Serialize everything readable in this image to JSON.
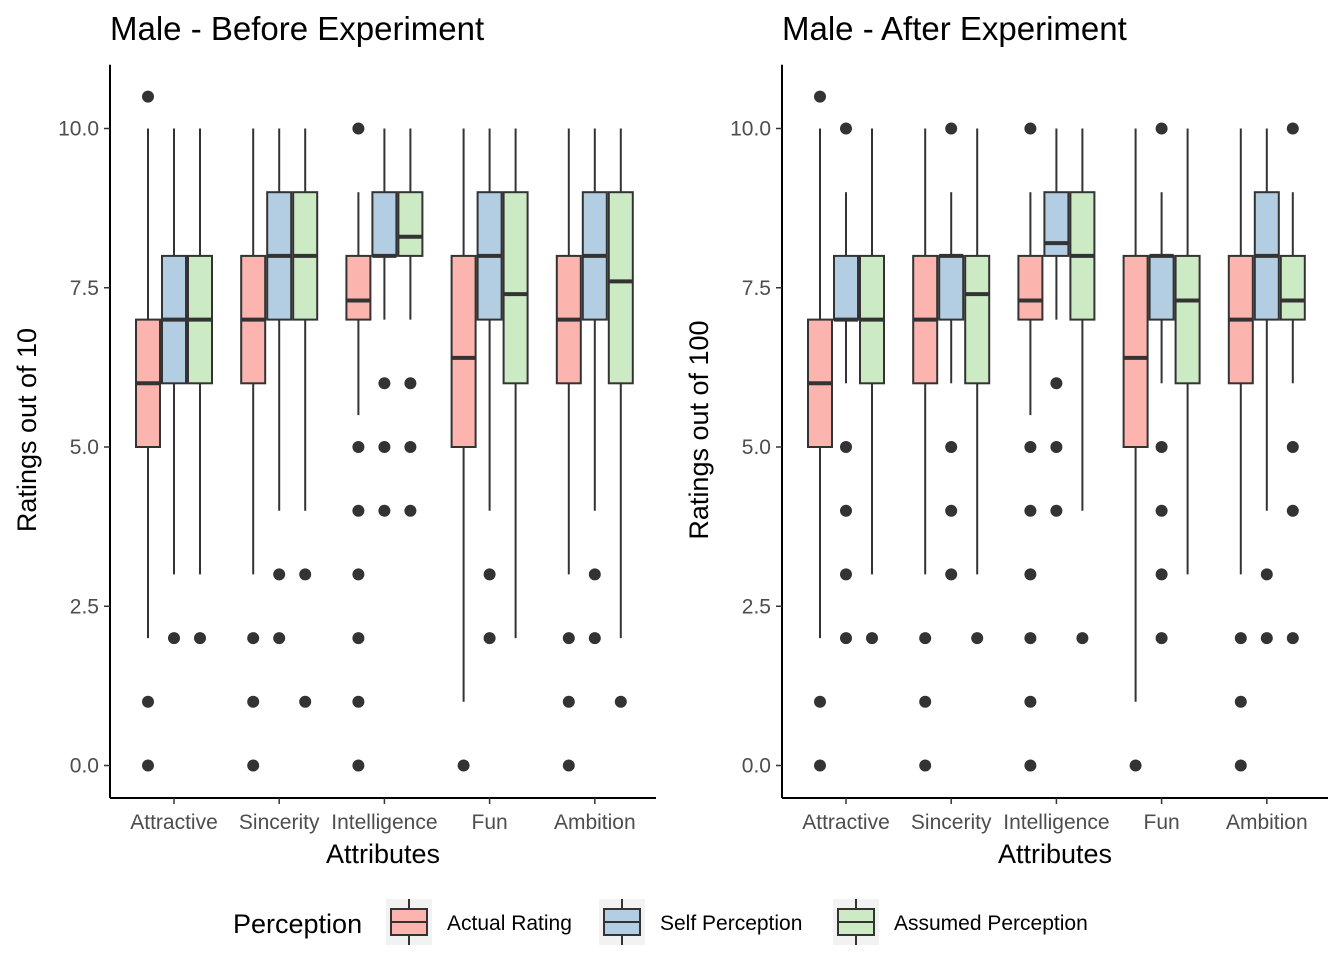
{
  "chart_data": [
    {
      "type": "box",
      "title": "Male - Before Experiment",
      "xlabel": "Attributes",
      "ylabel": "Ratings out of 10",
      "ylim": [
        -0.5,
        11
      ],
      "yticks": [
        "0.0",
        "2.5",
        "5.0",
        "7.5",
        "10.0"
      ],
      "categories": [
        "Attractive",
        "Sincerity",
        "Intelligence",
        "Fun",
        "Ambition"
      ],
      "series": [
        {
          "name": "Actual Rating",
          "color": "#fbb4ae",
          "boxes": [
            {
              "q1": 5,
              "median": 6,
              "q3": 7,
              "whisker_low": 2,
              "whisker_high": 10,
              "outliers": [
                10.5,
                1,
                0
              ]
            },
            {
              "q1": 6,
              "median": 7,
              "q3": 8,
              "whisker_low": 3,
              "whisker_high": 10,
              "outliers": [
                2,
                1,
                0
              ]
            },
            {
              "q1": 7,
              "median": 7.3,
              "q3": 8,
              "whisker_low": 5.5,
              "whisker_high": 9,
              "outliers": [
                10,
                5,
                4,
                3,
                2,
                1,
                0
              ]
            },
            {
              "q1": 5,
              "median": 6.4,
              "q3": 8,
              "whisker_low": 1,
              "whisker_high": 10,
              "outliers": [
                0
              ]
            },
            {
              "q1": 6,
              "median": 7,
              "q3": 8,
              "whisker_low": 3,
              "whisker_high": 10,
              "outliers": [
                2,
                1,
                0
              ]
            }
          ]
        },
        {
          "name": "Self Perception",
          "color": "#b3cde3",
          "boxes": [
            {
              "q1": 6,
              "median": 7,
              "q3": 8,
              "whisker_low": 3,
              "whisker_high": 10,
              "outliers": [
                2
              ]
            },
            {
              "q1": 7,
              "median": 8,
              "q3": 9,
              "whisker_low": 4,
              "whisker_high": 10,
              "outliers": [
                3,
                2
              ]
            },
            {
              "q1": 8,
              "median": 8,
              "q3": 9,
              "whisker_low": 7,
              "whisker_high": 10,
              "outliers": [
                6,
                5,
                4
              ]
            },
            {
              "q1": 7,
              "median": 8,
              "q3": 9,
              "whisker_low": 4,
              "whisker_high": 10,
              "outliers": [
                3,
                2
              ]
            },
            {
              "q1": 7,
              "median": 8,
              "q3": 9,
              "whisker_low": 4,
              "whisker_high": 10,
              "outliers": [
                3,
                2
              ]
            }
          ]
        },
        {
          "name": "Assumed Perception",
          "color": "#ccebc5",
          "boxes": [
            {
              "q1": 6,
              "median": 7,
              "q3": 8,
              "whisker_low": 3,
              "whisker_high": 10,
              "outliers": [
                2
              ]
            },
            {
              "q1": 7,
              "median": 8,
              "q3": 9,
              "whisker_low": 4,
              "whisker_high": 10,
              "outliers": [
                3,
                1
              ]
            },
            {
              "q1": 8,
              "median": 8.3,
              "q3": 9,
              "whisker_low": 7,
              "whisker_high": 10,
              "outliers": [
                6,
                5,
                4
              ]
            },
            {
              "q1": 6,
              "median": 7.4,
              "q3": 9,
              "whisker_low": 2,
              "whisker_high": 10,
              "outliers": []
            },
            {
              "q1": 6,
              "median": 7.6,
              "q3": 9,
              "whisker_low": 2,
              "whisker_high": 10,
              "outliers": [
                1
              ]
            }
          ]
        }
      ]
    },
    {
      "type": "box",
      "title": "Male - After Experiment",
      "xlabel": "Attributes",
      "ylabel": "Ratings out of 100",
      "ylim": [
        -0.5,
        11
      ],
      "yticks": [
        "0.0",
        "2.5",
        "5.0",
        "7.5",
        "10.0"
      ],
      "categories": [
        "Attractive",
        "Sincerity",
        "Intelligence",
        "Fun",
        "Ambition"
      ],
      "series": [
        {
          "name": "Actual Rating",
          "color": "#fbb4ae",
          "boxes": [
            {
              "q1": 5,
              "median": 6,
              "q3": 7,
              "whisker_low": 2,
              "whisker_high": 10,
              "outliers": [
                10.5,
                1,
                0
              ]
            },
            {
              "q1": 6,
              "median": 7,
              "q3": 8,
              "whisker_low": 3,
              "whisker_high": 10,
              "outliers": [
                2,
                1,
                0
              ]
            },
            {
              "q1": 7,
              "median": 7.3,
              "q3": 8,
              "whisker_low": 5.5,
              "whisker_high": 9,
              "outliers": [
                10,
                5,
                4,
                3,
                2,
                1,
                0
              ]
            },
            {
              "q1": 5,
              "median": 6.4,
              "q3": 8,
              "whisker_low": 1,
              "whisker_high": 10,
              "outliers": [
                0
              ]
            },
            {
              "q1": 6,
              "median": 7,
              "q3": 8,
              "whisker_low": 3,
              "whisker_high": 10,
              "outliers": [
                2,
                1,
                0
              ]
            }
          ]
        },
        {
          "name": "Self Perception",
          "color": "#b3cde3",
          "boxes": [
            {
              "q1": 7,
              "median": 7,
              "q3": 8,
              "whisker_low": 6,
              "whisker_high": 9,
              "outliers": [
                10,
                5,
                4,
                3,
                2
              ]
            },
            {
              "q1": 7,
              "median": 8,
              "q3": 8,
              "whisker_low": 6,
              "whisker_high": 9,
              "outliers": [
                10,
                5,
                4,
                3
              ]
            },
            {
              "q1": 8,
              "median": 8.2,
              "q3": 9,
              "whisker_low": 7,
              "whisker_high": 10,
              "outliers": [
                6,
                5,
                4
              ]
            },
            {
              "q1": 7,
              "median": 8,
              "q3": 8,
              "whisker_low": 6,
              "whisker_high": 9,
              "outliers": [
                10,
                5,
                4,
                3,
                2
              ]
            },
            {
              "q1": 7,
              "median": 8,
              "q3": 9,
              "whisker_low": 4,
              "whisker_high": 10,
              "outliers": [
                3,
                2
              ]
            }
          ]
        },
        {
          "name": "Assumed Perception",
          "color": "#ccebc5",
          "boxes": [
            {
              "q1": 6,
              "median": 7,
              "q3": 8,
              "whisker_low": 3,
              "whisker_high": 10,
              "outliers": [
                2
              ]
            },
            {
              "q1": 6,
              "median": 7.4,
              "q3": 8,
              "whisker_low": 3,
              "whisker_high": 10,
              "outliers": [
                2
              ]
            },
            {
              "q1": 7,
              "median": 8,
              "q3": 9,
              "whisker_low": 4,
              "whisker_high": 10,
              "outliers": [
                2
              ]
            },
            {
              "q1": 6,
              "median": 7.3,
              "q3": 8,
              "whisker_low": 3,
              "whisker_high": 10,
              "outliers": []
            },
            {
              "q1": 7,
              "median": 7.3,
              "q3": 8,
              "whisker_low": 6,
              "whisker_high": 9,
              "outliers": [
                10,
                5,
                4,
                2
              ]
            }
          ]
        }
      ]
    }
  ],
  "legend": {
    "title": "Perception",
    "position": "bottom",
    "items": [
      {
        "label": "Actual Rating",
        "color": "#fbb4ae"
      },
      {
        "label": "Self Perception",
        "color": "#b3cde3"
      },
      {
        "label": "Assumed Perception",
        "color": "#ccebc5"
      }
    ]
  },
  "style": {
    "box_outline": "#333333",
    "outlier_color": "#333333",
    "axis_color": "#000000",
    "tick_label_color": "#4d4d4d"
  }
}
